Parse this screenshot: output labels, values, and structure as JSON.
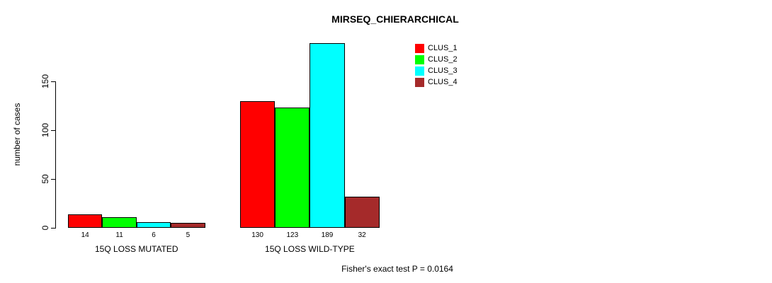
{
  "title": "MIRSEQ_CHIERARCHICAL",
  "ylabel": "number of cases",
  "footnote": "Fisher's exact test P = 0.0164",
  "chart_data": {
    "type": "bar",
    "grouped": true,
    "title": "MIRSEQ_CHIERARCHICAL",
    "xlabel": "",
    "ylabel": "number of cases",
    "categories": [
      "15Q LOSS MUTATED",
      "15Q LOSS WILD-TYPE"
    ],
    "series": [
      {
        "name": "CLUS_1",
        "color": "#ff0000",
        "values": [
          14,
          130
        ]
      },
      {
        "name": "CLUS_2",
        "color": "#00ff00",
        "values": [
          11,
          123
        ]
      },
      {
        "name": "CLUS_3",
        "color": "#00ffff",
        "values": [
          6,
          189
        ]
      },
      {
        "name": "CLUS_4",
        "color": "#a52a2a",
        "values": [
          5,
          32
        ]
      }
    ],
    "bar_value_labels": [
      [
        "14",
        "11",
        "6",
        "5"
      ],
      [
        "130",
        "123",
        "189",
        "32"
      ]
    ],
    "yticks": [
      "0",
      "50",
      "100",
      "150"
    ],
    "ylim": [
      0,
      192
    ],
    "grid": false,
    "legend_position": "top-right",
    "annotation": "Fisher's exact test P = 0.0164"
  },
  "colors": {
    "background": "#ffffff",
    "axis": "#000000",
    "text": "#000000"
  }
}
